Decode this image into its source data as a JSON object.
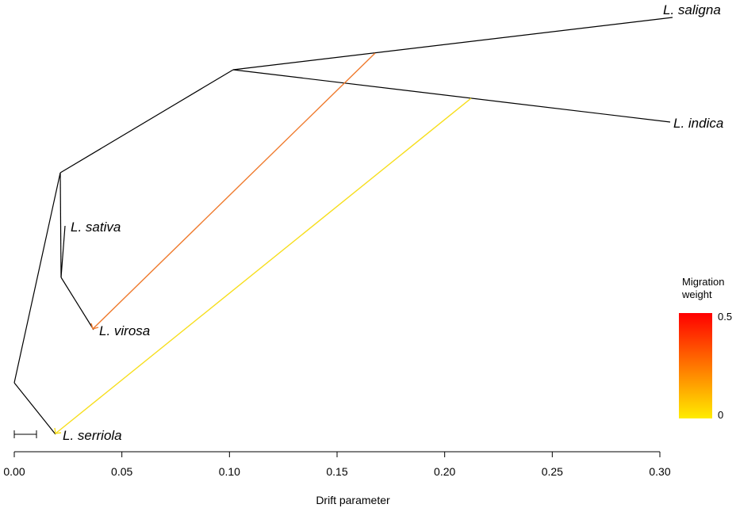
{
  "chart_data": {
    "type": "tree",
    "xlabel": "Drift parameter",
    "xlim": [
      0.0,
      0.3
    ],
    "ticks": [
      "0.00",
      "0.05",
      "0.10",
      "0.15",
      "0.20",
      "0.25",
      "0.30"
    ],
    "tick_values": [
      0.0,
      0.05,
      0.1,
      0.15,
      0.2,
      0.25,
      0.3
    ],
    "taxa": [
      {
        "id": "saligna",
        "label": "L. saligna"
      },
      {
        "id": "indica",
        "label": "L. indica"
      },
      {
        "id": "sativa",
        "label": "L. sativa"
      },
      {
        "id": "virosa",
        "label": "L. virosa"
      },
      {
        "id": "serriola",
        "label": "L. serriola"
      }
    ],
    "migration_edges": [
      {
        "from": "saligna-branch",
        "to": "L. virosa",
        "weight": 0.35,
        "color": "#ef7a2d"
      },
      {
        "from": "indica-branch",
        "to": "L. serriola",
        "weight": 0.03,
        "color": "#f7de1c"
      }
    ],
    "legend": {
      "title_line1": "Migration",
      "title_line2": "weight",
      "max_label": "0.5",
      "min_label": "0",
      "color_high": "#ff0000",
      "color_low": "#ffec00"
    }
  }
}
